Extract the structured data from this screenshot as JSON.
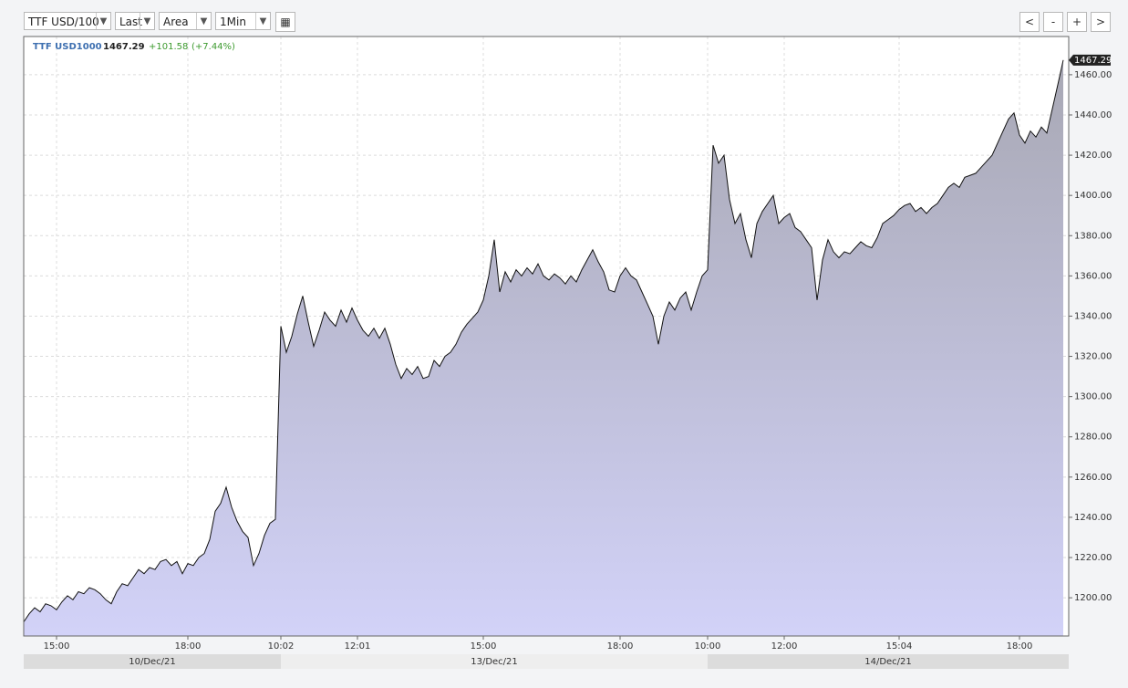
{
  "toolbar": {
    "symbol": "TTF USD/100",
    "field": "Last",
    "style": "Area",
    "interval": "1Min",
    "nav": [
      "<",
      "-",
      "+",
      ">"
    ]
  },
  "chart_data": {
    "type": "area",
    "header": {
      "symbol": "TTF USD1000",
      "change": "+101.58",
      "change_pct": "(+7.44%)"
    },
    "line_color": "#111111",
    "fill_top": "#a8a8b4",
    "fill_bottom": "#d2d2f8",
    "grid": true,
    "ylim": [
      1181,
      1479
    ],
    "yticks": [
      {
        "value": 1200,
        "label": "1200.00"
      },
      {
        "value": 1220,
        "label": "1220.00"
      },
      {
        "value": 1240,
        "label": "1240.00"
      },
      {
        "value": 1260,
        "label": "1260.00"
      },
      {
        "value": 1280,
        "label": "1280.00"
      },
      {
        "value": 1300,
        "label": "1300.00"
      },
      {
        "value": 1320,
        "label": "1320.00"
      },
      {
        "value": 1340,
        "label": "1340.00"
      },
      {
        "value": 1360,
        "label": "1360.00"
      },
      {
        "value": 1380,
        "label": "1380.00"
      },
      {
        "value": 1400,
        "label": "1400.00"
      },
      {
        "value": 1420,
        "label": "1420.00"
      },
      {
        "value": 1440,
        "label": "1440.00"
      },
      {
        "value": 1460,
        "label": "1460.00"
      }
    ],
    "sessions": [
      {
        "date": "10/Dec/21",
        "categories": [
          null,
          null,
          null,
          null,
          null,
          null,
          "15:00",
          null,
          null,
          null,
          null,
          null,
          null,
          null,
          null,
          null,
          null,
          null,
          null,
          null,
          null,
          null,
          null,
          null,
          null,
          null,
          null,
          null,
          null,
          null,
          "18:00",
          null,
          null,
          null,
          null,
          null,
          null,
          null,
          null,
          null,
          null,
          null,
          null,
          null,
          null,
          null,
          null
        ],
        "values": [
          1188,
          1192,
          1195,
          1193,
          1197,
          1196,
          1194,
          1198,
          1201,
          1199,
          1203,
          1202,
          1205,
          1204,
          1202,
          1199,
          1197,
          1203,
          1207,
          1206,
          1210,
          1214,
          1212,
          1215,
          1214,
          1218,
          1219,
          1216,
          1218,
          1212,
          1217,
          1216,
          1220,
          1222,
          1229,
          1243,
          1247,
          1255,
          1245,
          1238,
          1233,
          1230,
          1216,
          1222,
          1231,
          1237,
          1239
        ]
      },
      {
        "date": "13/Dec/21",
        "categories": [
          "10:02",
          null,
          null,
          null,
          null,
          null,
          null,
          null,
          null,
          null,
          null,
          null,
          null,
          null,
          "12:01",
          null,
          null,
          null,
          null,
          null,
          null,
          null,
          null,
          null,
          null,
          null,
          null,
          null,
          null,
          null,
          null,
          null,
          null,
          null,
          null,
          null,
          null,
          "15:00",
          null,
          null,
          null,
          null,
          null,
          null,
          null,
          null,
          null,
          null,
          null,
          null,
          null,
          null,
          null,
          null,
          null,
          null,
          null,
          null,
          null,
          null,
          null,
          null,
          "18:00",
          null,
          null,
          null,
          null,
          null,
          null,
          null,
          null,
          null,
          null,
          null,
          null,
          null,
          null,
          null
        ],
        "values": [
          1335,
          1322,
          1330,
          1341,
          1350,
          1337,
          1325,
          1333,
          1342,
          1338,
          1335,
          1343,
          1337,
          1344,
          1338,
          1333,
          1330,
          1334,
          1329,
          1334,
          1326,
          1316,
          1309,
          1314,
          1311,
          1315,
          1309,
          1310,
          1318,
          1315,
          1320,
          1322,
          1326,
          1332,
          1336,
          1339,
          1342,
          1348,
          1360,
          1378,
          1352,
          1362,
          1357,
          1363,
          1360,
          1364,
          1361,
          1366,
          1360,
          1358,
          1361,
          1359,
          1356,
          1360,
          1357,
          1363,
          1368,
          1373,
          1367,
          1362,
          1353,
          1352,
          1360,
          1364,
          1360,
          1358,
          1352,
          1346,
          1340,
          1326,
          1340,
          1347,
          1343,
          1349,
          1352,
          1343,
          1352,
          1360
        ]
      },
      {
        "date": "14/Dec/21",
        "categories": [
          "10:00",
          null,
          null,
          null,
          null,
          null,
          null,
          null,
          null,
          null,
          null,
          null,
          null,
          null,
          "12:00",
          null,
          null,
          null,
          null,
          null,
          null,
          null,
          null,
          null,
          null,
          null,
          null,
          null,
          null,
          null,
          null,
          null,
          null,
          null,
          null,
          "15:04",
          null,
          null,
          null,
          null,
          null,
          null,
          null,
          null,
          null,
          null,
          null,
          null,
          null,
          null,
          null,
          null,
          null,
          null,
          null,
          null,
          null,
          "18:00",
          null,
          null,
          null,
          null,
          null,
          null,
          null,
          null
        ],
        "values": [
          1363,
          1425,
          1416,
          1420,
          1398,
          1386,
          1391,
          1378,
          1369,
          1386,
          1392,
          1396,
          1400,
          1386,
          1389,
          1391,
          1384,
          1382,
          1378,
          1374,
          1348,
          1368,
          1378,
          1372,
          1369,
          1372,
          1371,
          1374,
          1377,
          1375,
          1374,
          1379,
          1386,
          1388,
          1390,
          1393,
          1395,
          1396,
          1392,
          1394,
          1391,
          1394,
          1396,
          1400,
          1404,
          1406,
          1404,
          1409,
          1410,
          1411,
          1414,
          1417,
          1420,
          1426,
          1432,
          1438,
          1441,
          1430,
          1426,
          1432,
          1429,
          1434,
          1431,
          1443,
          1455,
          1467.29
        ]
      }
    ]
  }
}
